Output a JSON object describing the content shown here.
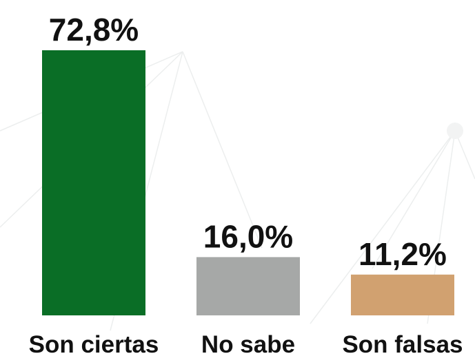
{
  "chart_data": {
    "type": "bar",
    "categories": [
      "Son ciertas",
      "No sabe",
      "Son falsas"
    ],
    "values": [
      72.8,
      16.0,
      11.2
    ],
    "value_labels": [
      "72,8%",
      "16,0%",
      "11,2%"
    ],
    "colors": [
      "#0a6e26",
      "#a6a8a7",
      "#d1a170"
    ]
  }
}
